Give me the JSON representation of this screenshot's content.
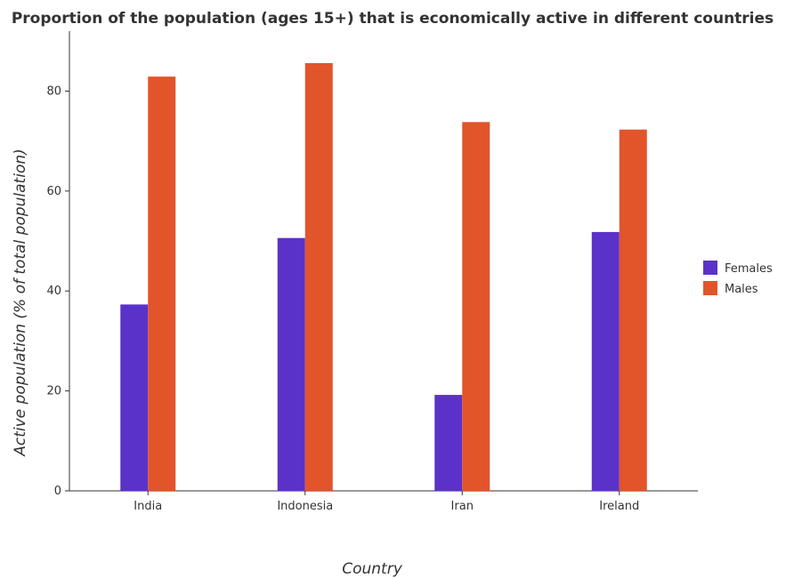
{
  "chart_data": {
    "type": "bar",
    "title": "Proportion of the population (ages 15+) that is economically active in different countries",
    "xlabel": "Country",
    "ylabel": "Active population (% of total population)",
    "categories": [
      "India",
      "Indonesia",
      "Iran",
      "Ireland"
    ],
    "series": [
      {
        "name": "Females",
        "color": "#5b32c9",
        "values": [
          37.3,
          50.6,
          19.2,
          51.8
        ]
      },
      {
        "name": "Males",
        "color": "#e2542a",
        "values": [
          82.9,
          85.6,
          73.8,
          72.3
        ]
      }
    ],
    "ylim": [
      0,
      92
    ],
    "yticks": [
      0,
      20,
      40,
      60,
      80
    ],
    "legend_position": "right",
    "grid": false
  }
}
